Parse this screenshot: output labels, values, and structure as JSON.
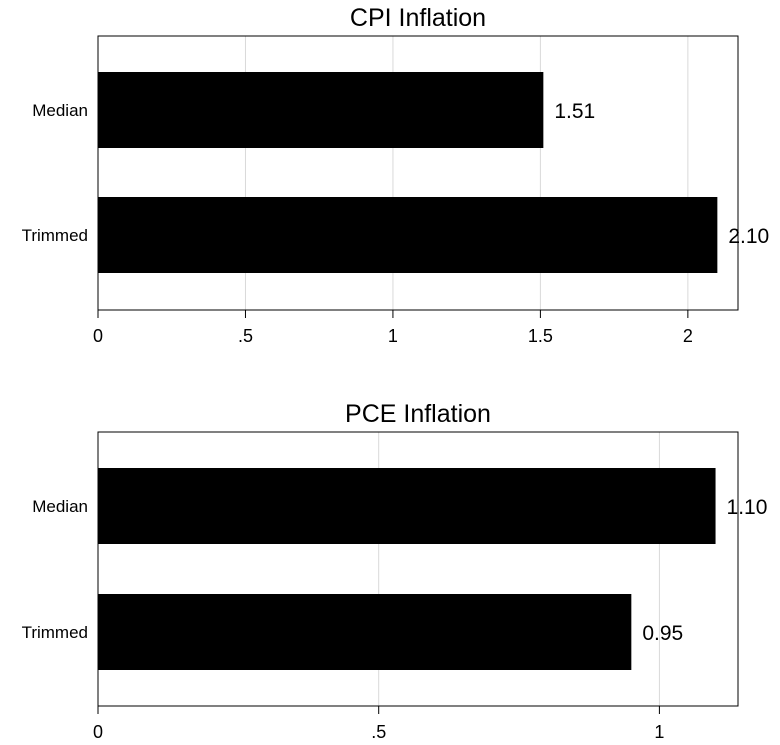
{
  "chart_data": [
    {
      "type": "bar",
      "orientation": "horizontal",
      "title": "CPI Inflation",
      "categories": [
        "Median",
        "Trimmed"
      ],
      "values": [
        1.51,
        2.1
      ],
      "value_labels": [
        "1.51",
        "2.10"
      ],
      "xlim": [
        0,
        2.17
      ],
      "ticks": [
        0,
        0.5,
        1,
        1.5,
        2
      ],
      "tick_labels": [
        "0",
        ".5",
        "1",
        "1.5",
        "2"
      ],
      "grid": "vertical",
      "bar_color": "#000000"
    },
    {
      "type": "bar",
      "orientation": "horizontal",
      "title": "PCE Inflation",
      "categories": [
        "Median",
        "Trimmed"
      ],
      "values": [
        1.1,
        0.95
      ],
      "value_labels": [
        "1.10",
        "0.95"
      ],
      "xlim": [
        0,
        1.14
      ],
      "ticks": [
        0,
        0.5,
        1
      ],
      "tick_labels": [
        "0",
        ".5",
        "1"
      ],
      "grid": "vertical",
      "bar_color": "#000000"
    }
  ]
}
